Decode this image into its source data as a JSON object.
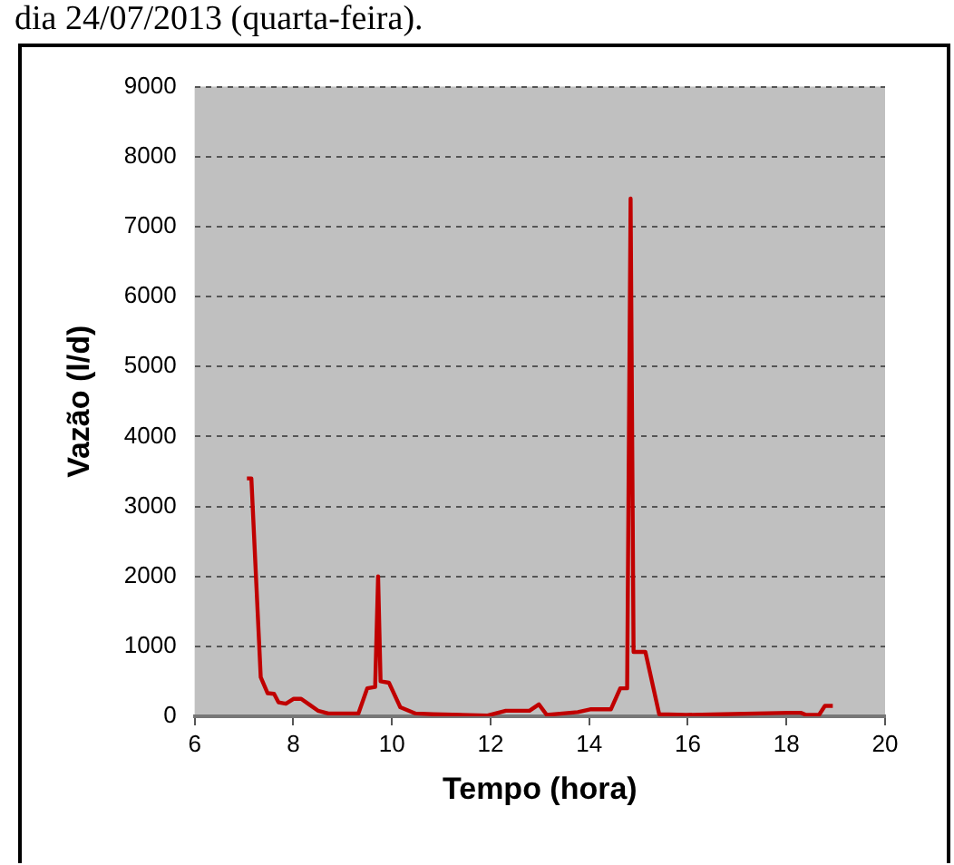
{
  "chart_data": {
    "type": "line",
    "xlabel": "Tempo (hora)",
    "ylabel": "Vazão (l/d)",
    "annotations": [
      "dia 24/07/2013 (quarta-feira)."
    ],
    "x": [
      7.06,
      7.15,
      7.34,
      7.48,
      7.61,
      7.7,
      7.85,
      8.01,
      8.16,
      8.34,
      8.5,
      8.71,
      9.32,
      9.5,
      9.66,
      9.72,
      9.77,
      9.94,
      10.17,
      10.48,
      10.84,
      11.94,
      12.31,
      12.79,
      12.98,
      13.14,
      13.77,
      14.02,
      14.44,
      14.63,
      14.77,
      14.84,
      14.9,
      15.14,
      15.42,
      15.97,
      16.7,
      18.05,
      18.29,
      18.4,
      18.66,
      18.78,
      18.94
    ],
    "series": [
      {
        "color": "#c00000",
        "values": [
          3400,
          3400,
          560,
          330,
          320,
          200,
          180,
          250,
          250,
          160,
          80,
          40,
          40,
          400,
          420,
          2000,
          500,
          480,
          130,
          40,
          30,
          10,
          80,
          80,
          170,
          20,
          60,
          100,
          100,
          400,
          400,
          7400,
          920,
          920,
          30,
          20,
          30,
          50,
          50,
          20,
          20,
          150,
          150
        ]
      }
    ],
    "xlim": [
      6,
      20
    ],
    "xticks": [
      6,
      8,
      10,
      12,
      14,
      16,
      18,
      20
    ],
    "ylim": [
      0,
      9000
    ],
    "yticks": [
      0,
      1000,
      2000,
      3000,
      4000,
      5000,
      6000,
      7000,
      8000,
      9000
    ],
    "grid": "y",
    "legend": false,
    "marker": "none",
    "line_style": "solid"
  }
}
